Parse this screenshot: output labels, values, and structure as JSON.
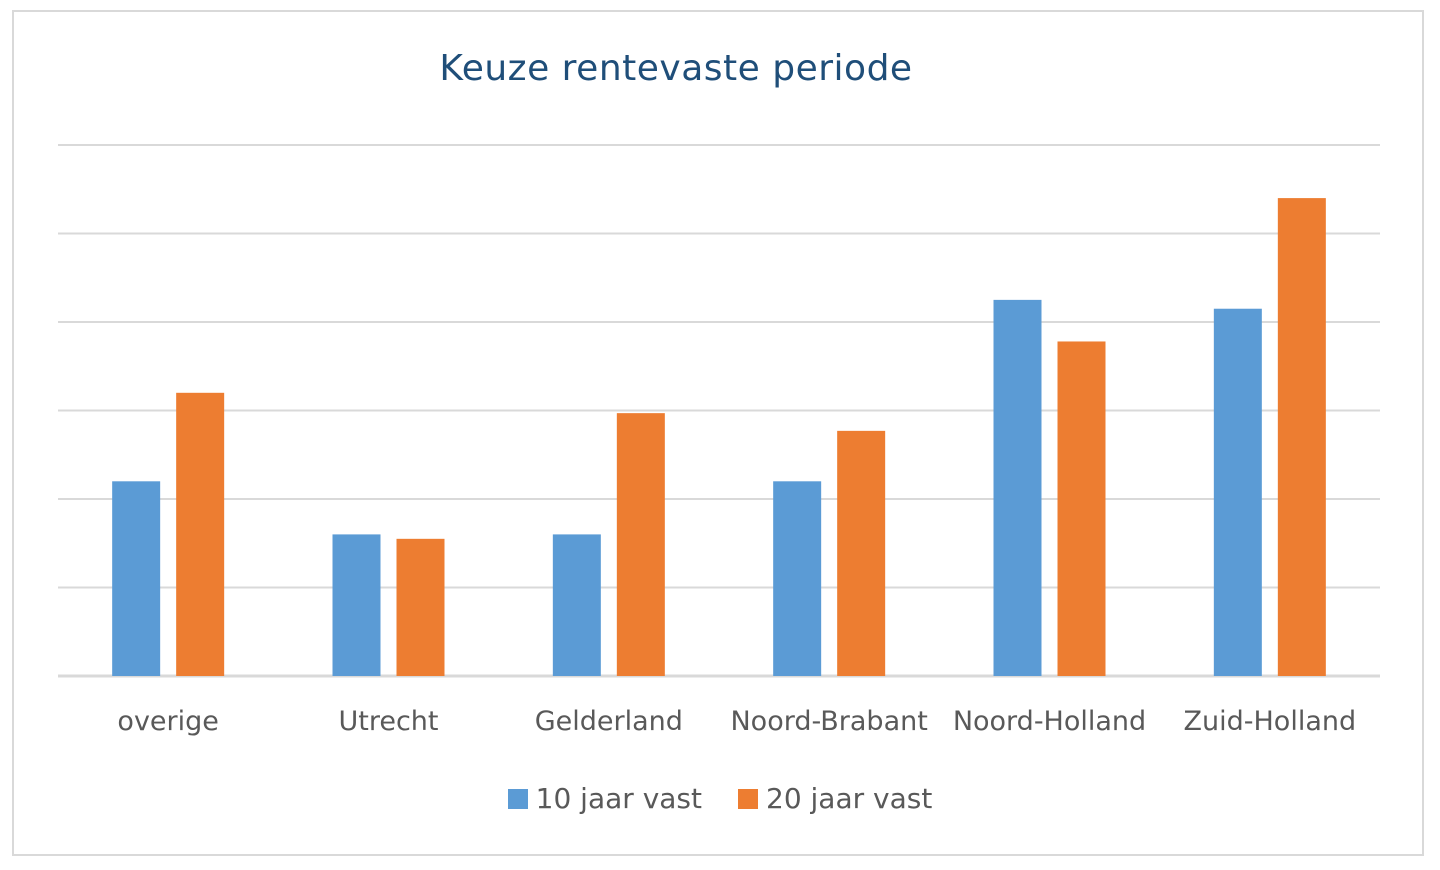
{
  "chart_data": {
    "type": "bar",
    "title": "Keuze rentevaste periode",
    "categories": [
      "overige",
      "Utrecht",
      "Gelderland",
      "Noord-Brabant",
      "Noord-Holland",
      "Zuid-Holland"
    ],
    "series": [
      {
        "name": "10 jaar vast",
        "color": "#5b9bd5",
        "values": [
          2.2,
          1.6,
          1.6,
          2.2,
          4.25,
          4.15
        ]
      },
      {
        "name": "20 jaar vast",
        "color": "#ed7d31",
        "values": [
          3.2,
          1.55,
          2.97,
          2.77,
          3.78,
          5.4
        ]
      }
    ],
    "ylim": [
      0,
      6
    ],
    "gridlines": 6,
    "grid": true,
    "legend": "bottom",
    "xlabel": "",
    "ylabel": ""
  }
}
